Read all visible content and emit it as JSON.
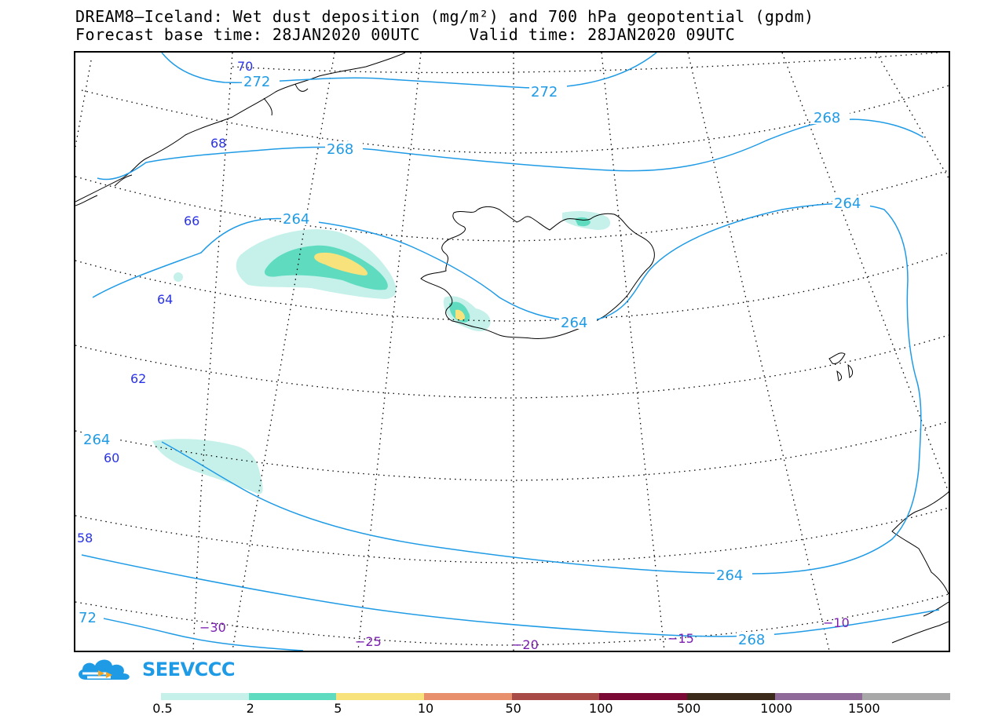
{
  "header": {
    "title_line1": "DREAM8—Iceland: Wet dust deposition (mg/m²) and 700 hPa geopotential (gpdm)",
    "title_line2": "Forecast base time: 28JAN2020 00UTC     Valid time: 28JAN2020 09UTC"
  },
  "map": {
    "graticule": {
      "latitude_labels": [
        "70",
        "68",
        "66",
        "64",
        "62",
        "60",
        "58"
      ],
      "longitude_labels": [
        "−30",
        "−25",
        "−20",
        "−15",
        "−10"
      ]
    },
    "contours": {
      "geopotential_labels": [
        "272",
        "272",
        "268",
        "268",
        "264",
        "264",
        "264",
        "264",
        "264",
        "268",
        "72"
      ]
    },
    "colors": {
      "contour_line": "#1f9be6",
      "lat_label": "#2a33e6",
      "lon_label": "#7a1fb0",
      "coastline": "#000000"
    }
  },
  "logo": {
    "text": "SEEVCCC",
    "icon": "cloud-logo-icon"
  },
  "legend": {
    "bins": [
      {
        "color": "#c5f1ea"
      },
      {
        "color": "#5fdcc0"
      },
      {
        "color": "#f8e27c"
      },
      {
        "color": "#e8906c"
      },
      {
        "color": "#a84a45"
      },
      {
        "color": "#7a0a35"
      },
      {
        "color": "#3b2a1a"
      },
      {
        "color": "#8f6a98"
      },
      {
        "color": "#a8a8a8"
      }
    ],
    "labels": [
      "0.5",
      "2",
      "5",
      "10",
      "50",
      "100",
      "500",
      "1000",
      "1500"
    ]
  }
}
